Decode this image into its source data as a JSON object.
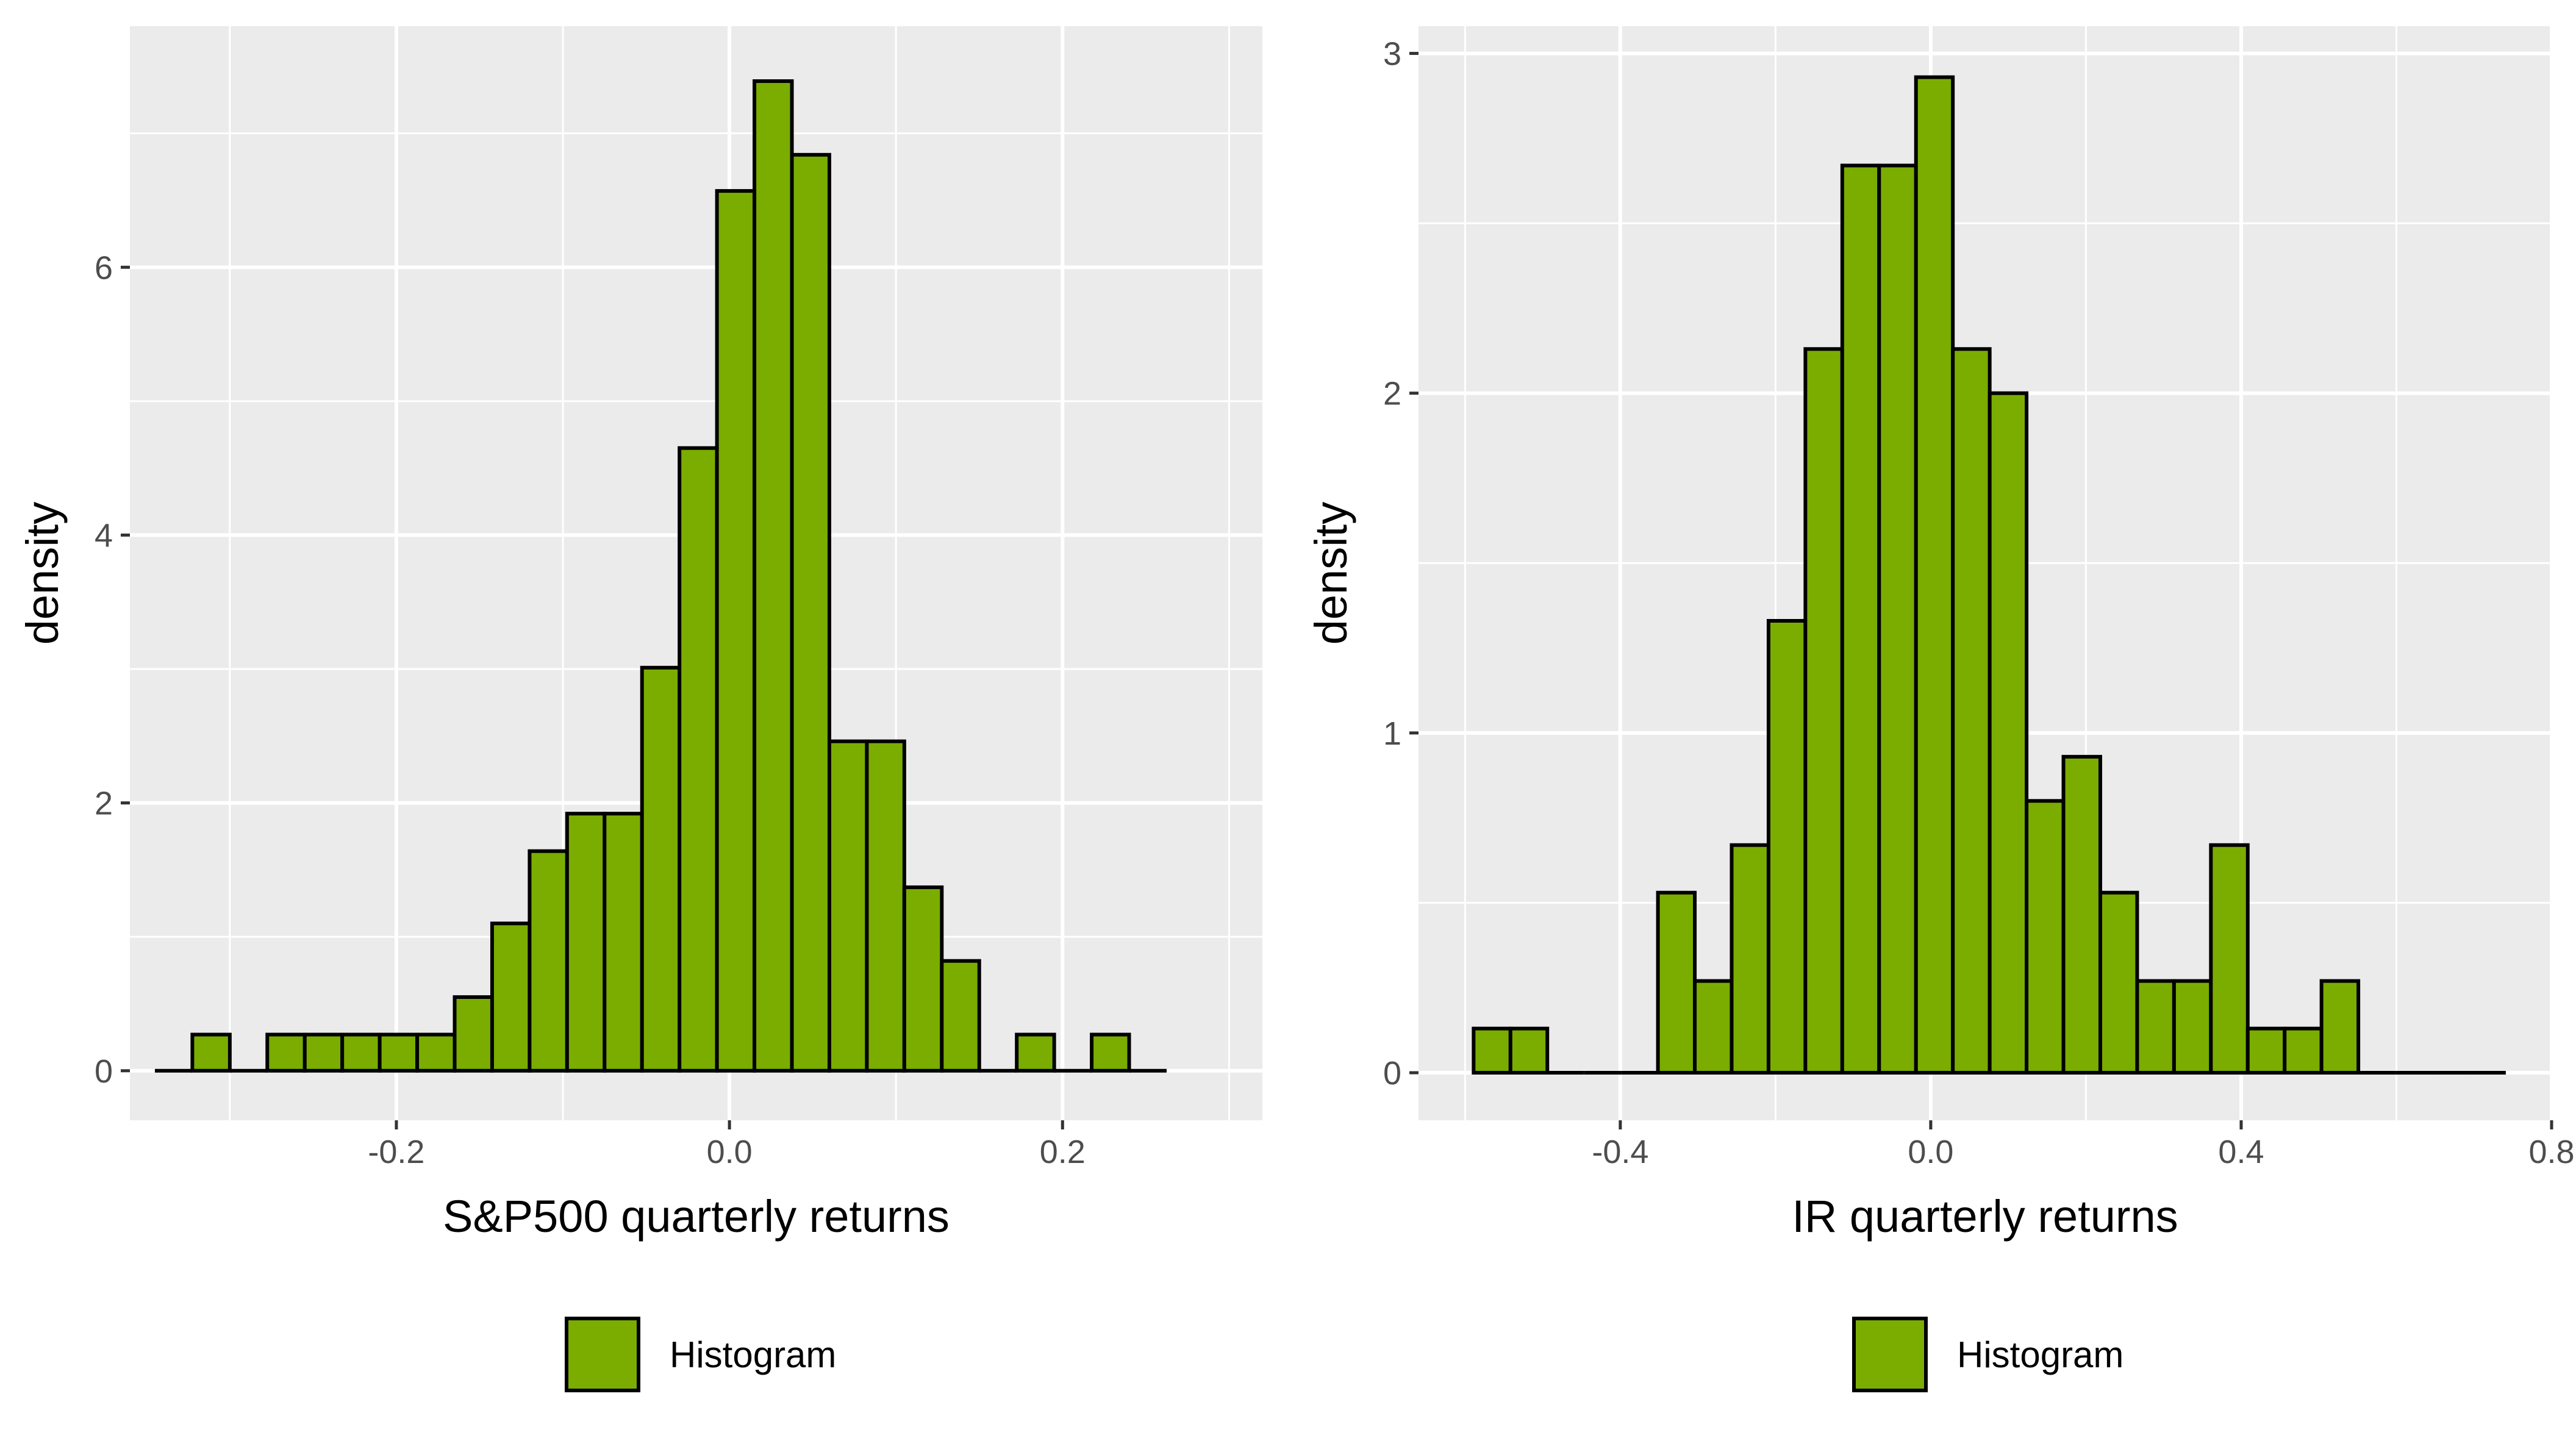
{
  "chart_data": [
    {
      "type": "bar",
      "subtype": "histogram",
      "xlabel": "S&P500 quarterly returns",
      "ylabel": "density",
      "xlim": [
        -0.36,
        0.32
      ],
      "ylim": [
        -0.37,
        7.8
      ],
      "x_ticks": [
        -0.2,
        0.0,
        0.2
      ],
      "x_tick_labels": [
        "-0.2",
        "0.0",
        "0.2"
      ],
      "y_ticks": [
        0,
        2,
        4,
        6
      ],
      "y_tick_labels": [
        "0",
        "2",
        "4",
        "6"
      ],
      "bin_start": -0.345,
      "bin_width": 0.0225,
      "values": [
        0,
        0.27,
        0,
        0.27,
        0.27,
        0.27,
        0.27,
        0.27,
        0.55,
        1.1,
        1.64,
        1.92,
        1.92,
        3.01,
        4.65,
        6.57,
        7.39,
        6.84,
        2.46,
        2.46,
        1.37,
        0.82,
        0,
        0.27,
        0,
        0.27,
        0
      ],
      "fill_color": "#7aad00",
      "edge_color": "#000000",
      "panel_background": "#ebebeb",
      "grid": true,
      "legend": {
        "label": "Histogram",
        "position": "bottom"
      }
    },
    {
      "type": "bar",
      "subtype": "histogram",
      "xlabel": "IR quarterly returns",
      "ylabel": "density",
      "xlim": [
        -0.66,
        0.8
      ],
      "ylim": [
        -0.14,
        3.08
      ],
      "x_ticks": [
        -0.4,
        0.0,
        0.4,
        0.8
      ],
      "x_tick_labels": [
        "-0.4",
        "0.0",
        "0.4",
        "0.8"
      ],
      "y_ticks": [
        0,
        1,
        2,
        3
      ],
      "y_tick_labels": [
        "0",
        "1",
        "2",
        "3"
      ],
      "bin_start": -0.589,
      "bin_width": 0.0475,
      "values": [
        0.13,
        0.13,
        0,
        0,
        0,
        0.53,
        0.27,
        0.67,
        1.33,
        2.13,
        2.67,
        2.67,
        2.93,
        2.13,
        2.0,
        0.8,
        0.93,
        0.53,
        0.27,
        0.27,
        0.67,
        0.13,
        0.13,
        0.27,
        0,
        0,
        0,
        0
      ],
      "fill_color": "#7aad00",
      "edge_color": "#000000",
      "panel_background": "#ebebeb",
      "grid": true,
      "legend": {
        "label": "Histogram",
        "position": "bottom"
      }
    }
  ]
}
